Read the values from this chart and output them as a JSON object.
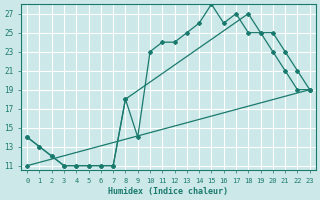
{
  "xlabel": "Humidex (Indice chaleur)",
  "bg_color": "#cce8e8",
  "grid_color": "#ffffff",
  "line_color": "#1a7a6e",
  "xlim": [
    -0.5,
    23.5
  ],
  "ylim": [
    10.5,
    28
  ],
  "xticks": [
    0,
    1,
    2,
    3,
    4,
    5,
    6,
    7,
    8,
    9,
    10,
    11,
    12,
    13,
    14,
    15,
    16,
    17,
    18,
    19,
    20,
    21,
    22,
    23
  ],
  "yticks": [
    11,
    13,
    15,
    17,
    19,
    21,
    23,
    25,
    27
  ],
  "line1_x": [
    0,
    1,
    2,
    3,
    4,
    5,
    6,
    7,
    8,
    9,
    10,
    11,
    12,
    13,
    14,
    15,
    16,
    17,
    18,
    19,
    20,
    21,
    22,
    23
  ],
  "line1_y": [
    14,
    13,
    12,
    11,
    11,
    11,
    11,
    11,
    18,
    14,
    23,
    24,
    24,
    25,
    26,
    28,
    26,
    27,
    25,
    25,
    23,
    21,
    19,
    19
  ],
  "line2_x": [
    0,
    1,
    2,
    3,
    4,
    5,
    6,
    7,
    8,
    18,
    19,
    20,
    21,
    22,
    23
  ],
  "line2_y": [
    14,
    13,
    12,
    11,
    11,
    11,
    11,
    11,
    18,
    27,
    25,
    25,
    23,
    21,
    19
  ],
  "line3_x": [
    0,
    23
  ],
  "line3_y": [
    11,
    19
  ]
}
